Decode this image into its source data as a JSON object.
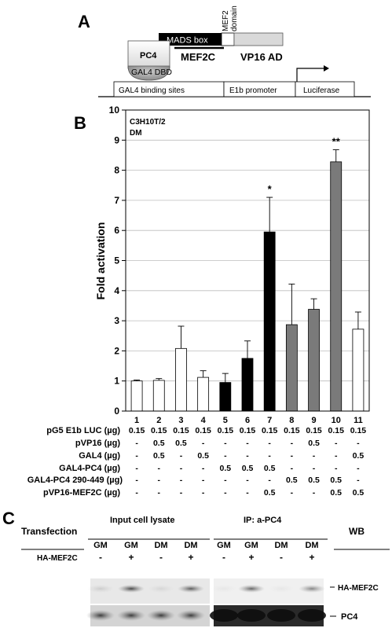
{
  "panel_a": {
    "letter": "A",
    "mads_box": "MADS box",
    "mef2_domain_line1": "MEF2",
    "mef2_domain_line2": "domain",
    "pc4": "PC4",
    "gal4_dbd": "GAL4 DBD",
    "mef2c": "MEF2C",
    "vp16_ad": "VP16 AD",
    "gal4_sites": "GAL4  binding  sites",
    "e1b_promoter": "E1b promoter",
    "luciferase": "Luciferase"
  },
  "panel_b": {
    "letter": "B",
    "cell_line": "C3H10T/2",
    "condition": "DM",
    "row_labels": [
      "pG5 E1b LUC (µg)",
      "pVP16 (µg)",
      "GAL4 (µg)",
      "GAL4-PC4 (µg)",
      "GAL4-PC4 290-449 (µg)",
      "pVP16-MEF2C  (µg)"
    ],
    "table_values": [
      [
        "0.15",
        "0.15",
        "0.15",
        "0.15",
        "0.15",
        "0.15",
        "0.15",
        "0.15",
        "0.15",
        "0.15",
        "0.15"
      ],
      [
        "-",
        "0.5",
        "0.5",
        "-",
        "-",
        "-",
        "-",
        "-",
        "0.5",
        "-",
        "-"
      ],
      [
        "-",
        "0.5",
        "-",
        "0.5",
        "-",
        "-",
        "-",
        "-",
        "-",
        "-",
        "0.5"
      ],
      [
        "-",
        "-",
        "-",
        "-",
        "0.5",
        "0.5",
        "0.5",
        "-",
        "-",
        "-",
        "-"
      ],
      [
        "-",
        "-",
        "-",
        "-",
        "-",
        "-",
        "-",
        "0.5",
        "0.5",
        "0.5",
        "-"
      ],
      [
        "-",
        "-",
        "-",
        "-",
        "-",
        "-",
        "0.5",
        "-",
        "-",
        "0.5",
        "0.5"
      ]
    ]
  },
  "chart_data": {
    "type": "bar",
    "ylabel": "Fold  activation",
    "xlabel": "",
    "ylim": [
      0,
      10
    ],
    "yticks": [
      "0",
      "1",
      "2",
      "3",
      "4",
      "5",
      "6",
      "7",
      "8",
      "9",
      "10"
    ],
    "categories": [
      "1",
      "2",
      "3",
      "4",
      "5",
      "6",
      "7",
      "8",
      "9",
      "10",
      "11"
    ],
    "values": [
      1.0,
      1.02,
      2.08,
      1.12,
      0.95,
      1.75,
      5.95,
      2.87,
      3.38,
      8.28,
      2.72
    ],
    "errors": [
      0.03,
      0.06,
      0.74,
      0.22,
      0.3,
      0.58,
      1.15,
      1.35,
      0.35,
      0.4,
      0.57
    ],
    "bar_colors": [
      "#ffffff",
      "#ffffff",
      "#ffffff",
      "#ffffff",
      "#000000",
      "#000000",
      "#000000",
      "#7a7a7a",
      "#7a7a7a",
      "#7a7a7a",
      "#ffffff"
    ],
    "significance": [
      "",
      "",
      "",
      "",
      "",
      "",
      "*",
      "",
      "",
      "**",
      ""
    ],
    "grid": true
  },
  "panel_c": {
    "letter": "C",
    "transfection": "Transfection",
    "input_title": "Input cell lysate",
    "ip_title": "IP: a-PC4",
    "wb": "WB",
    "ha_row_label": "HA-MEF2C",
    "conditions": [
      "GM",
      "GM",
      "DM",
      "DM",
      "GM",
      "GM",
      "DM",
      "DM"
    ],
    "ha_signs": [
      "-",
      "+",
      "-",
      "+",
      "-",
      "+",
      "-",
      "+"
    ],
    "band_ha": "HA-MEF2C",
    "band_pc4": "PC4"
  }
}
